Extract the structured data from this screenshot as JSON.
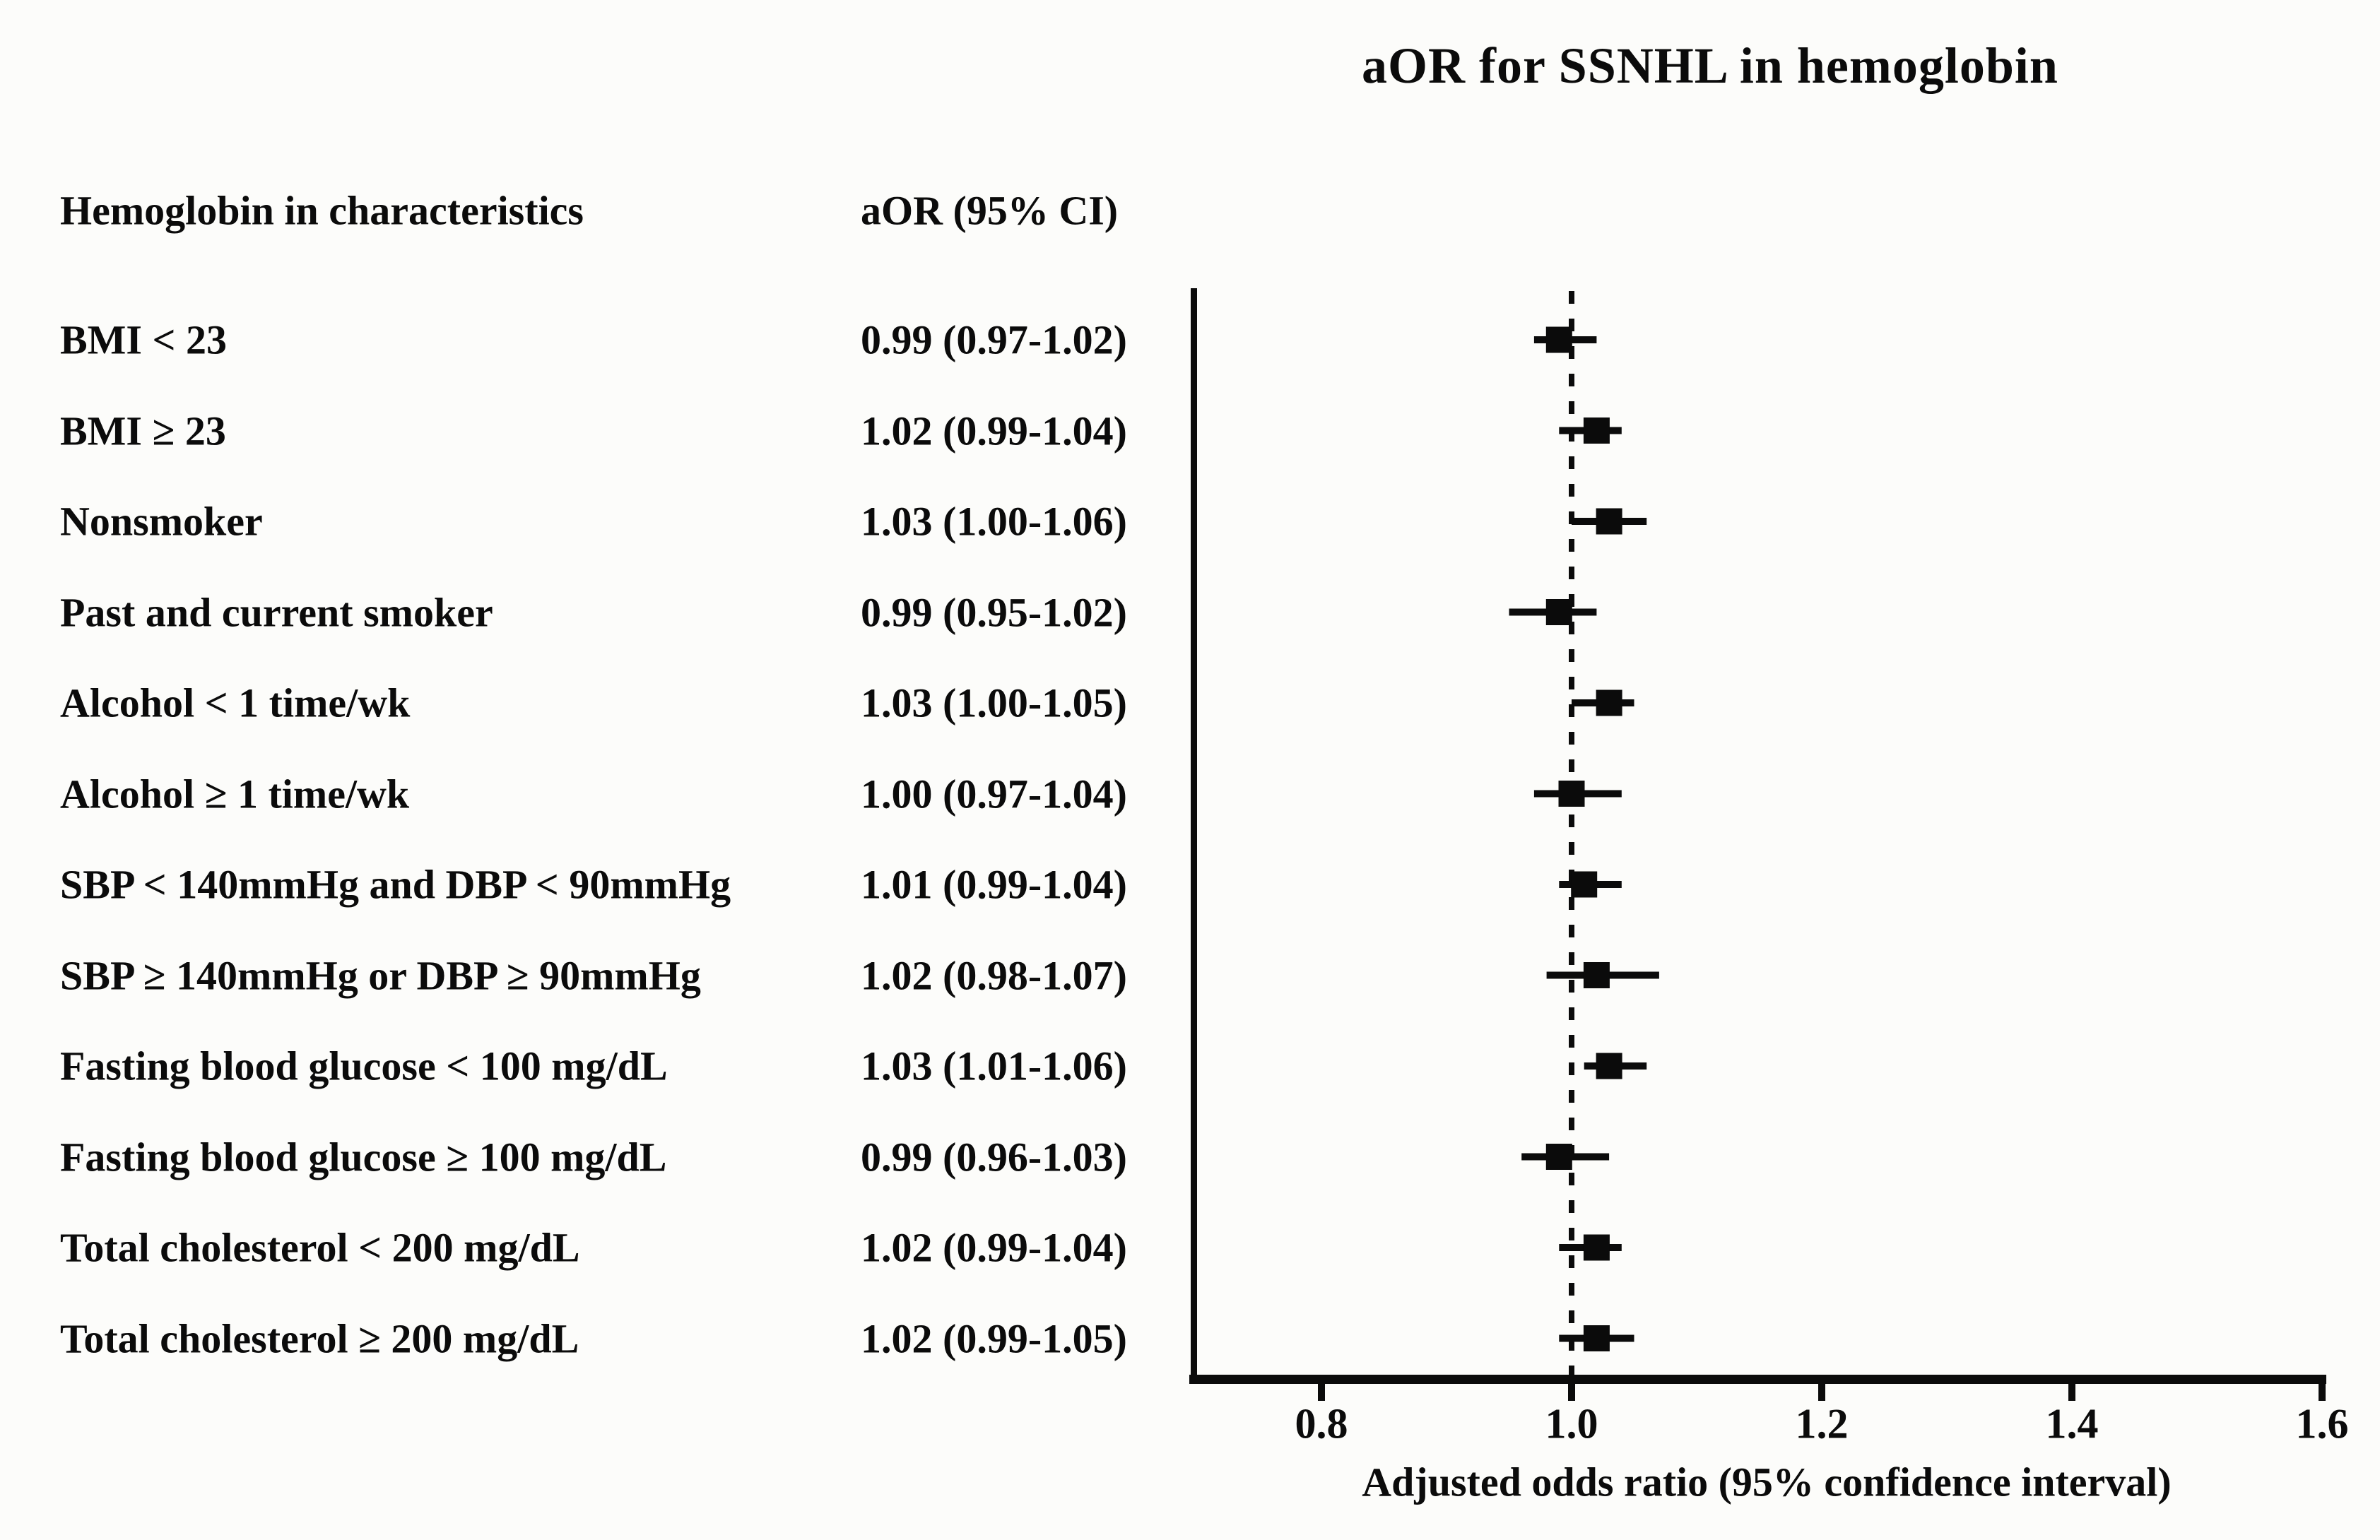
{
  "title": "aOR for SSNHL in hemoglobin",
  "columns": {
    "characteristics": "Hemoglobin in characteristics",
    "aor_ci": "aOR (95% CI)"
  },
  "chart_data": {
    "type": "scatter",
    "subtype": "forest-plot",
    "title": "aOR for SSNHL in hemoglobin",
    "xlabel": "Adjusted odds ratio (95% confidence interval)",
    "x_ticks": [
      0.8,
      1.0,
      1.2,
      1.4,
      1.6
    ],
    "x_tick_labels": [
      "0.8",
      "1.0",
      "1.2",
      "1.4",
      "1.6"
    ],
    "xlim": [
      0.7,
      1.6
    ],
    "reference_line": 1.0,
    "grid": false,
    "marker_color": "#0b0b0b",
    "rows": [
      {
        "label": "BMI < 23",
        "aor_text": "0.99 (0.97-1.02)",
        "aor": 0.99,
        "ci_low": 0.97,
        "ci_high": 1.02
      },
      {
        "label": "BMI ≥ 23",
        "aor_text": "1.02 (0.99-1.04)",
        "aor": 1.02,
        "ci_low": 0.99,
        "ci_high": 1.04
      },
      {
        "label": "Nonsmoker",
        "aor_text": "1.03 (1.00-1.06)",
        "aor": 1.03,
        "ci_low": 1.0,
        "ci_high": 1.06
      },
      {
        "label": "Past and current smoker",
        "aor_text": "0.99 (0.95-1.02)",
        "aor": 0.99,
        "ci_low": 0.95,
        "ci_high": 1.02
      },
      {
        "label": "Alcohol < 1 time/wk",
        "aor_text": "1.03 (1.00-1.05)",
        "aor": 1.03,
        "ci_low": 1.0,
        "ci_high": 1.05
      },
      {
        "label": "Alcohol ≥ 1 time/wk",
        "aor_text": "1.00 (0.97-1.04)",
        "aor": 1.0,
        "ci_low": 0.97,
        "ci_high": 1.04
      },
      {
        "label": "SBP < 140mmHg and DBP < 90mmHg",
        "aor_text": "1.01 (0.99-1.04)",
        "aor": 1.01,
        "ci_low": 0.99,
        "ci_high": 1.04
      },
      {
        "label": "SBP ≥ 140mmHg or DBP ≥ 90mmHg",
        "aor_text": "1.02 (0.98-1.07)",
        "aor": 1.02,
        "ci_low": 0.98,
        "ci_high": 1.07
      },
      {
        "label": "Fasting blood glucose < 100 mg/dL",
        "aor_text": "1.03 (1.01-1.06)",
        "aor": 1.03,
        "ci_low": 1.01,
        "ci_high": 1.06
      },
      {
        "label": "Fasting blood glucose ≥ 100 mg/dL",
        "aor_text": "0.99 (0.96-1.03)",
        "aor": 0.99,
        "ci_low": 0.96,
        "ci_high": 1.03
      },
      {
        "label": "Total cholesterol < 200 mg/dL",
        "aor_text": "1.02 (0.99-1.04)",
        "aor": 1.02,
        "ci_low": 0.99,
        "ci_high": 1.04
      },
      {
        "label": "Total cholesterol ≥ 200 mg/dL",
        "aor_text": "1.02 (0.99-1.05)",
        "aor": 1.02,
        "ci_low": 0.99,
        "ci_high": 1.05
      }
    ]
  }
}
